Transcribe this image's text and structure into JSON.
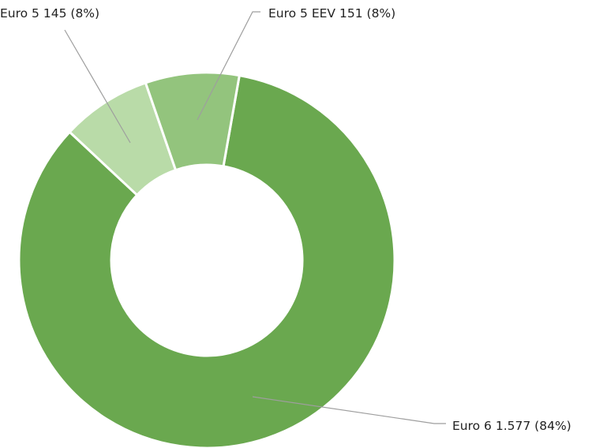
{
  "chart_data": {
    "type": "donut",
    "categories": [
      "Euro 6",
      "Euro 5",
      "Euro 5 EEV"
    ],
    "values": [
      1577,
      145,
      151
    ],
    "value_labels": [
      "1.577",
      "145",
      "151"
    ],
    "percentages": [
      84,
      8,
      8
    ],
    "percentage_labels": [
      "(84%)",
      "(8%)",
      "(8%)"
    ],
    "colors": [
      "#6aa84f",
      "#b9dba8",
      "#93c47d"
    ]
  }
}
